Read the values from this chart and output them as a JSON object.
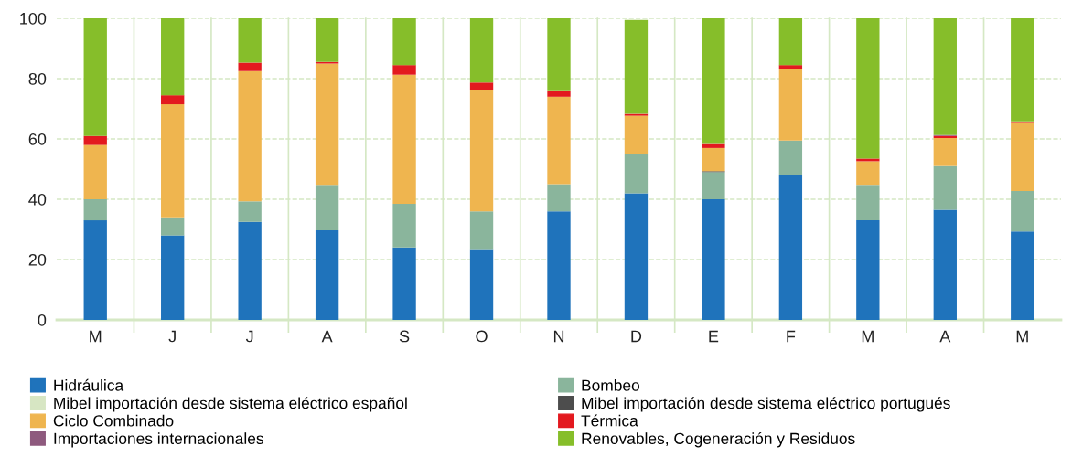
{
  "chart_data": {
    "type": "bar",
    "stacked": true,
    "categories": [
      "M",
      "J",
      "J",
      "A",
      "S",
      "O",
      "N",
      "D",
      "E",
      "F",
      "M",
      "A",
      "M"
    ],
    "series": [
      {
        "name": "Hidráulica",
        "color": "#1f73bb",
        "values": [
          33,
          28,
          32.5,
          29.7,
          24,
          23.5,
          36,
          42,
          40,
          48,
          33,
          36.5,
          29.3
        ]
      },
      {
        "name": "Bombeo",
        "color": "#8ab59c",
        "values": [
          7,
          6,
          6.8,
          15.1,
          14.5,
          12.5,
          9,
          13,
          9,
          11.5,
          11.8,
          14.5,
          13.4
        ]
      },
      {
        "name": "Mibel importación desde sistema eléctrico español",
        "color": "#d7e6c3",
        "values": [
          0,
          0,
          0,
          0,
          0,
          0,
          0,
          0,
          0,
          0,
          0,
          0,
          0
        ]
      },
      {
        "name": "Mibel importación desde sistema eléctrico portugués",
        "color": "#4d4d4d",
        "values": [
          0,
          0,
          0,
          0,
          0,
          0,
          0,
          0,
          0.3,
          0,
          0,
          0,
          0
        ]
      },
      {
        "name": "Ciclo Combinado",
        "color": "#efb54f",
        "values": [
          18,
          37.5,
          43.2,
          40.2,
          42.8,
          40.3,
          29,
          12.7,
          7.7,
          23.7,
          7.8,
          9.3,
          22.6
        ]
      },
      {
        "name": "Térmica",
        "color": "#e3191f",
        "values": [
          3,
          3,
          2.8,
          0.5,
          3.2,
          2.4,
          1.8,
          0.6,
          1.3,
          1.3,
          0.9,
          0.7,
          0.5
        ]
      },
      {
        "name": "Importaciones internacionales",
        "color": "#8e5a7e",
        "values": [
          0,
          0,
          0,
          0,
          0,
          0,
          0,
          0,
          0,
          0,
          0,
          0.3,
          0
        ]
      },
      {
        "name": "Renovables, Cogeneración y Residuos",
        "color": "#86be2a",
        "values": [
          39,
          25.5,
          14.7,
          14.5,
          15.5,
          21.3,
          24.2,
          31.2,
          41.7,
          15.5,
          46.5,
          38.7,
          34.2
        ]
      }
    ],
    "ylim": [
      0,
      100
    ],
    "yticks": [
      0,
      20,
      40,
      60,
      80,
      100
    ],
    "grid": true,
    "legend": "bottom"
  }
}
